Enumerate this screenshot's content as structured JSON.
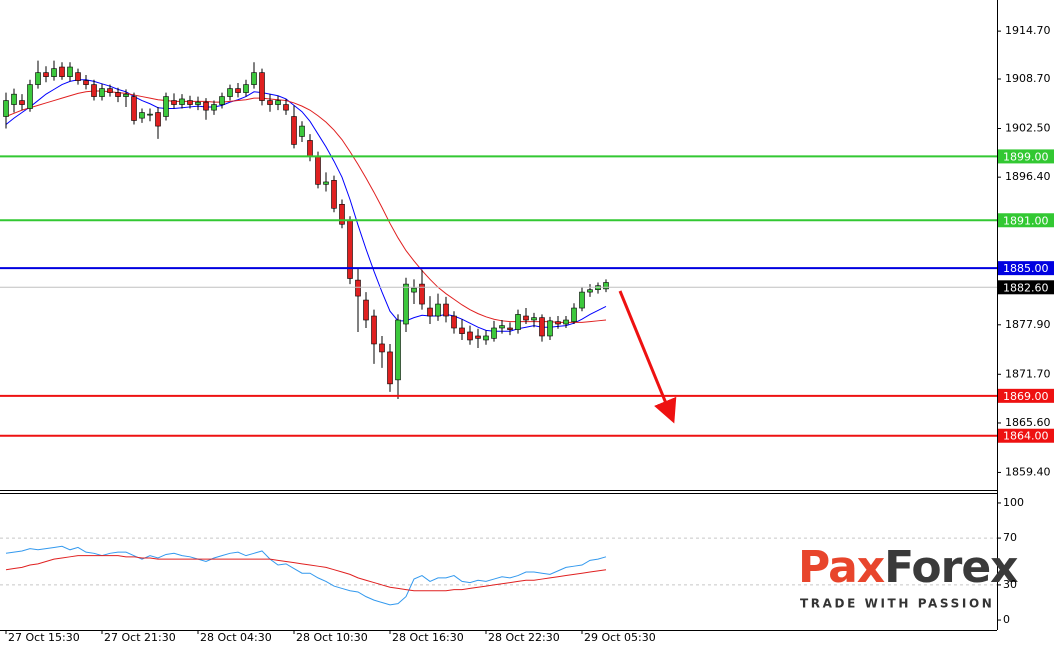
{
  "chart_data": [
    {
      "type": "candlestick",
      "ylim": [
        1857.2,
        1918.6
      ],
      "yticks": [
        {
          "value": 1914.7,
          "label": "1914.70"
        },
        {
          "value": 1908.7,
          "label": "1908.70"
        },
        {
          "value": 1902.5,
          "label": "1902.50"
        },
        {
          "value": 1896.4,
          "label": "1896.40"
        },
        {
          "value": 1877.9,
          "label": "1877.90"
        },
        {
          "value": 1871.7,
          "label": "1871.70"
        },
        {
          "value": 1865.6,
          "label": "1865.60"
        },
        {
          "value": 1859.4,
          "label": "1859.40"
        }
      ],
      "up_color": "#3cc83c",
      "down_color": "#e02020",
      "open": [
        1904,
        1905.5,
        1906,
        1905,
        1908,
        1909.5,
        1909,
        1910.2,
        1909,
        1909.5,
        1908.5,
        1908,
        1906.5,
        1907.5,
        1907,
        1906.5,
        1906.5,
        1903.8,
        1904.2,
        1904.5,
        1904,
        1906,
        1905.5,
        1906,
        1905.5,
        1905.8,
        1904.8,
        1905.5,
        1906.5,
        1907.5,
        1907,
        1908,
        1909.5,
        1906,
        1905.5,
        1905.5,
        1904,
        1901.5,
        1901,
        1899,
        1895.5,
        1896,
        1893,
        1891,
        1883.5,
        1881,
        1879,
        1875.5,
        1874.5,
        1871,
        1878,
        1882,
        1883,
        1880,
        1879,
        1880.5,
        1879,
        1877.5,
        1877,
        1876.5,
        1876,
        1876.2,
        1877.5,
        1877.5,
        1877.3,
        1879,
        1878.5,
        1878.8,
        1876.5,
        1878.3,
        1878,
        1878.3,
        1880,
        1882,
        1882.3,
        1882.4
      ],
      "high": [
        1907,
        1907.5,
        1906.8,
        1908.6,
        1911,
        1910.3,
        1911,
        1910.8,
        1910.8,
        1910,
        1909.2,
        1908.6,
        1908.1,
        1908,
        1907.6,
        1907.4,
        1907,
        1905,
        1905,
        1905.2,
        1907,
        1906.9,
        1906.8,
        1906.6,
        1906.5,
        1906.3,
        1906,
        1907,
        1908,
        1908.2,
        1908.6,
        1910.8,
        1910,
        1906.8,
        1906.6,
        1906.2,
        1905.4,
        1903.4,
        1901.8,
        1899.6,
        1897,
        1896.6,
        1893.6,
        1891.5,
        1885,
        1882,
        1879.8,
        1876.5,
        1875.5,
        1879.2,
        1883.8,
        1883.6,
        1884.8,
        1881.5,
        1881.8,
        1881.4,
        1879.6,
        1878.6,
        1877.8,
        1877.4,
        1877.2,
        1878.4,
        1878.5,
        1878.2,
        1879.8,
        1880,
        1879.4,
        1879.2,
        1878.9,
        1879,
        1879,
        1880.6,
        1882.6,
        1883,
        1883.2,
        1883.6
      ],
      "low": [
        1902.5,
        1904.5,
        1904.8,
        1904.6,
        1907.5,
        1908.3,
        1908.5,
        1908.6,
        1908.4,
        1908,
        1907.4,
        1906,
        1906,
        1906.5,
        1905.8,
        1905.2,
        1903,
        1903.2,
        1903.4,
        1901.2,
        1903.5,
        1905,
        1905,
        1905,
        1904.8,
        1903.6,
        1904.2,
        1905,
        1906,
        1906.4,
        1906.5,
        1907.5,
        1905.4,
        1904.6,
        1904.8,
        1904.2,
        1900,
        1900.8,
        1898.4,
        1895,
        1894.6,
        1892,
        1890,
        1883,
        1877,
        1877.5,
        1873,
        1872.5,
        1869.5,
        1868.6,
        1877,
        1880.5,
        1879.8,
        1878,
        1878.4,
        1878.2,
        1876.8,
        1876,
        1875.4,
        1875,
        1875.4,
        1875.8,
        1876.8,
        1876.6,
        1876.8,
        1878,
        1877.6,
        1875.8,
        1876,
        1877.4,
        1877.5,
        1878,
        1879.6,
        1881.4,
        1881.8,
        1882
      ],
      "close": [
        1906,
        1906.8,
        1905.5,
        1908,
        1909.5,
        1909,
        1910,
        1909,
        1910.2,
        1908.5,
        1908,
        1906.5,
        1907.5,
        1907,
        1906.5,
        1906.8,
        1903.5,
        1904.5,
        1904.3,
        1902.8,
        1906.5,
        1905.5,
        1906.2,
        1905.5,
        1905.8,
        1904.8,
        1905.5,
        1906.5,
        1907.5,
        1907,
        1908,
        1909.5,
        1906,
        1905.5,
        1906,
        1904.8,
        1900.5,
        1902.8,
        1899,
        1895.5,
        1895.8,
        1892.5,
        1890.5,
        1883.7,
        1881.5,
        1878.5,
        1875.5,
        1874.5,
        1870.5,
        1878.5,
        1883,
        1882.5,
        1880.5,
        1879,
        1880.5,
        1879,
        1877.5,
        1876.8,
        1876,
        1876.2,
        1876.5,
        1877.5,
        1877.8,
        1877.3,
        1879.2,
        1878.5,
        1878.8,
        1876.5,
        1878.4,
        1878,
        1878.5,
        1880,
        1882,
        1882.3,
        1882.8,
        1883.2
      ],
      "series": [
        {
          "color": "#0000ff",
          "values": [
            1903,
            1903.8,
            1904.5,
            1905.2,
            1906,
            1906.8,
            1907.4,
            1908,
            1908.4,
            1908.6,
            1908.6,
            1908.4,
            1908.1,
            1907.8,
            1907.4,
            1907.1,
            1906.5,
            1906,
            1905.6,
            1905.1,
            1905,
            1905,
            1905.1,
            1905.2,
            1905.3,
            1905.2,
            1905.2,
            1905.4,
            1905.8,
            1906.1,
            1906.5,
            1907.1,
            1907,
            1906.8,
            1906.6,
            1906.2,
            1905.4,
            1904.6,
            1903.4,
            1901.8,
            1900.2,
            1898.4,
            1896.4,
            1893.6,
            1890.4,
            1887.4,
            1884.6,
            1882,
            1879.6,
            1878.4,
            1878.4,
            1878.8,
            1879.1,
            1879,
            1879,
            1879.2,
            1879,
            1878.6,
            1878.1,
            1877.6,
            1877.2,
            1877.1,
            1877.1,
            1877.1,
            1877.4,
            1877.6,
            1877.8,
            1877.6,
            1877.6,
            1877.7,
            1877.8,
            1878.1,
            1878.6,
            1879.2,
            1879.7,
            1880.2
          ]
        },
        {
          "color": "#e02020",
          "values": [
            1904,
            1904.4,
            1904.8,
            1905.1,
            1905.4,
            1905.7,
            1906,
            1906.3,
            1906.6,
            1906.9,
            1907.1,
            1907.2,
            1907.2,
            1907.1,
            1907,
            1906.9,
            1906.7,
            1906.5,
            1906.3,
            1906.1,
            1906,
            1905.9,
            1905.9,
            1905.9,
            1905.9,
            1905.9,
            1905.8,
            1905.8,
            1905.9,
            1906,
            1906.1,
            1906.3,
            1906.3,
            1906.2,
            1906.1,
            1906,
            1905.7,
            1905.3,
            1904.8,
            1904.1,
            1903.3,
            1902.3,
            1901.1,
            1899.6,
            1898,
            1896.3,
            1894.5,
            1892.6,
            1890.6,
            1888.8,
            1887.2,
            1885.9,
            1884.7,
            1883.6,
            1882.6,
            1881.8,
            1881.1,
            1880.4,
            1879.8,
            1879.3,
            1878.9,
            1878.6,
            1878.4,
            1878.3,
            1878.3,
            1878.3,
            1878.3,
            1878.3,
            1878.3,
            1878.2,
            1878.2,
            1878.2,
            1878.2,
            1878.3,
            1878.4,
            1878.5
          ]
        }
      ],
      "levels": [
        {
          "value": 1899,
          "label": "1899.00",
          "color": "#32c832"
        },
        {
          "value": 1891,
          "label": "1891.00",
          "color": "#32c832"
        },
        {
          "value": 1885,
          "label": "1885.00",
          "color": "#0000e0"
        },
        {
          "value": 1869,
          "label": "1869.00",
          "color": "#ee1111"
        },
        {
          "value": 1864,
          "label": "1864.00",
          "color": "#ee1111"
        }
      ],
      "current_price": {
        "value": 1882.6,
        "label": "1882.60"
      }
    },
    {
      "type": "line",
      "ylim": [
        -8.5,
        108.5
      ],
      "yticks": [
        100,
        70,
        30,
        0
      ],
      "categories": [
        "27 Oct 15:30",
        null,
        null,
        null,
        null,
        null,
        null,
        null,
        null,
        null,
        null,
        null,
        "27 Oct 21:30",
        null,
        null,
        null,
        null,
        null,
        null,
        null,
        null,
        null,
        null,
        null,
        "28 Oct 04:30",
        null,
        null,
        null,
        null,
        null,
        null,
        null,
        null,
        null,
        null,
        null,
        "28 Oct 10:30",
        null,
        null,
        null,
        null,
        null,
        null,
        null,
        null,
        null,
        null,
        null,
        "28 Oct 16:30",
        null,
        null,
        null,
        null,
        null,
        null,
        null,
        null,
        null,
        null,
        null,
        "28 Oct 22:30",
        null,
        null,
        null,
        null,
        null,
        null,
        null,
        null,
        null,
        null,
        null,
        "29 Oct 05:30",
        null,
        null,
        null
      ],
      "series": [
        {
          "color": "#3399ee",
          "values": [
            57,
            58,
            59,
            61,
            60,
            61,
            62,
            63,
            60,
            62,
            58,
            57,
            55,
            57,
            58,
            58,
            55,
            52,
            55,
            53,
            56,
            57,
            55,
            54,
            52,
            50,
            53,
            55,
            57,
            58,
            55,
            57,
            59,
            52,
            47,
            48,
            44,
            40,
            40,
            36,
            33,
            29,
            27,
            25,
            24,
            20,
            17,
            15,
            13,
            14,
            20,
            35,
            38,
            33,
            36,
            36,
            38,
            33,
            32,
            34,
            33,
            35,
            37,
            36,
            38,
            41,
            41,
            40,
            39,
            42,
            45,
            46,
            47,
            51,
            52,
            54
          ]
        },
        {
          "color": "#e02020",
          "values": [
            43,
            44,
            45,
            47,
            48,
            50,
            52,
            53,
            54,
            55,
            55,
            55,
            55,
            55,
            55,
            54,
            54,
            53,
            53,
            52,
            52,
            52,
            52,
            52,
            52,
            52,
            52,
            52,
            52,
            52,
            52,
            52,
            52,
            52,
            51,
            50,
            49,
            48,
            47,
            46,
            45,
            43,
            41,
            39,
            36,
            34,
            32,
            30,
            28,
            27,
            26,
            25,
            25,
            25,
            25,
            25,
            26,
            26,
            27,
            28,
            29,
            30,
            31,
            32,
            33,
            34,
            34,
            35,
            36,
            37,
            38,
            39,
            40,
            41,
            42,
            43
          ]
        }
      ]
    }
  ],
  "logo": {
    "brand_a": "Pax",
    "brand_b": "Forex",
    "tagline": "TRADE WITH PASSION"
  }
}
